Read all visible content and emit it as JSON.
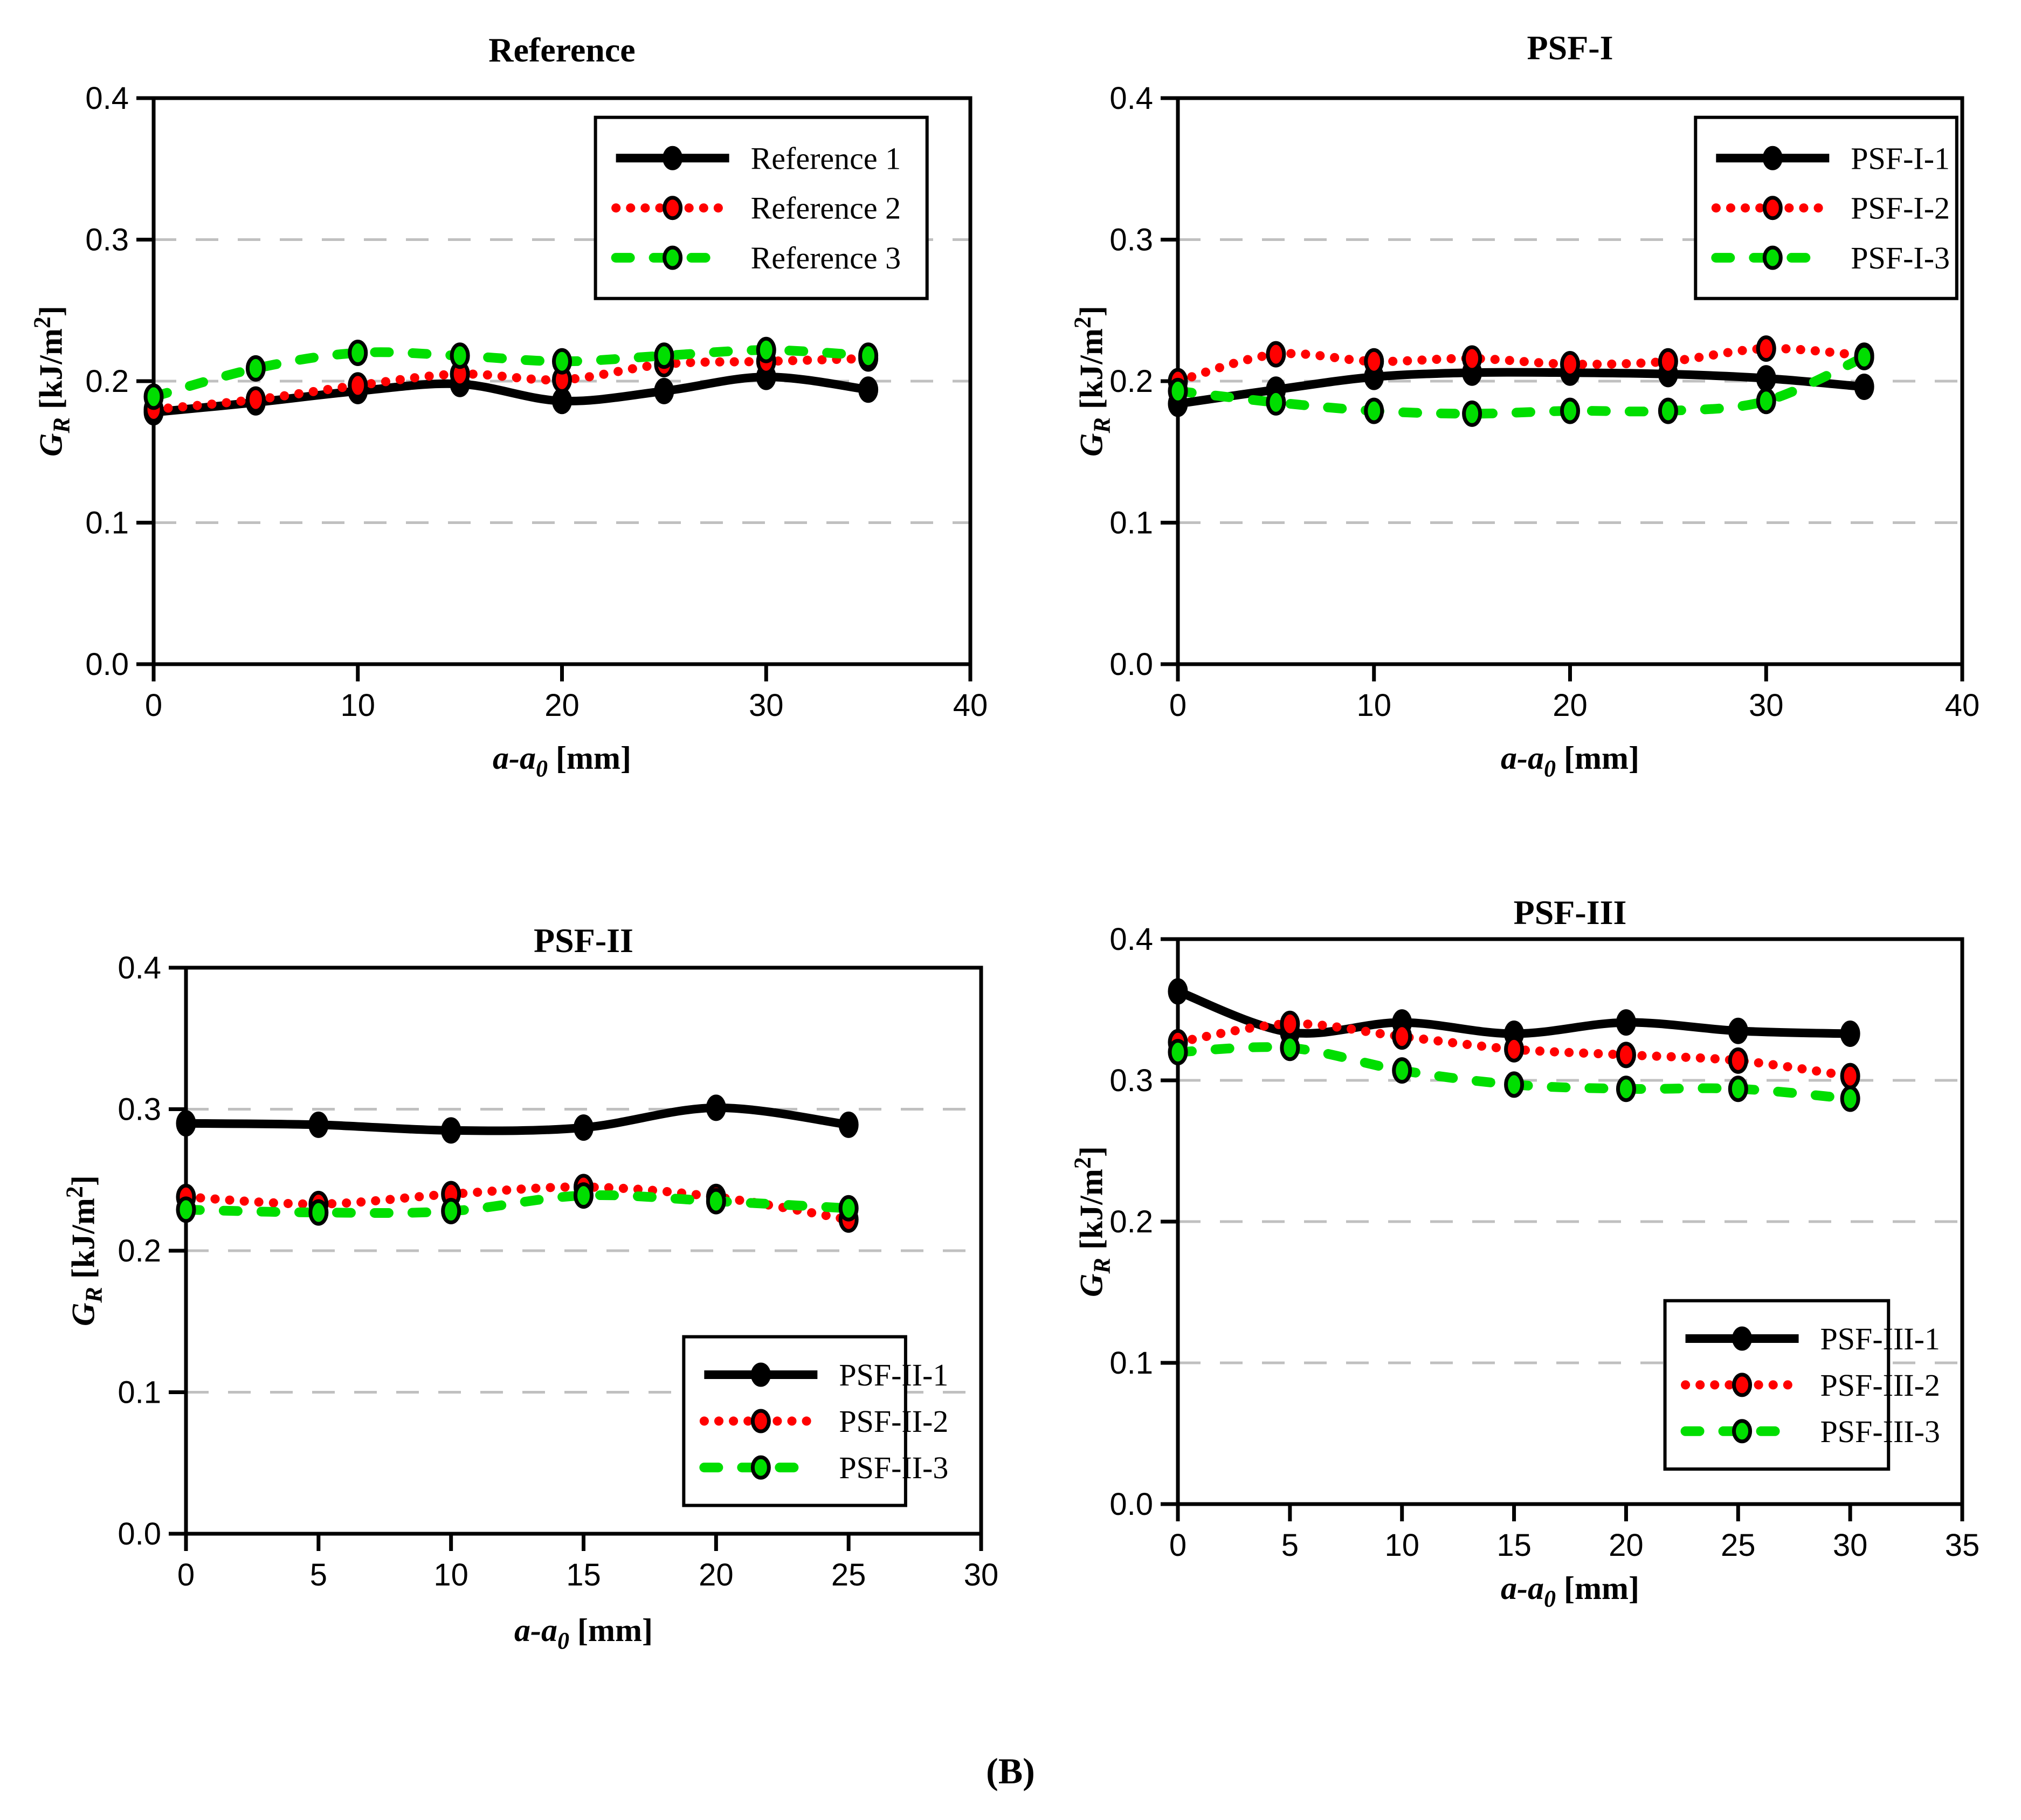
{
  "caption": "(B)",
  "colors": {
    "black_series": "#000000",
    "red_series": "#ff0000",
    "green_series": "#00de00",
    "grid": "#c0c0c0",
    "frame": "#000000"
  },
  "axis": {
    "xlabel_main": "a-a",
    "xlabel_sub": "0",
    "xlabel_unit": " [mm]",
    "ylabel_main": "G",
    "ylabel_sub": "R",
    "ylabel_unit": " [kJ/m",
    "ylabel_sup": "2",
    "ylabel_close": "]"
  },
  "chart_data": [
    {
      "type": "line",
      "title": "Reference",
      "xlabel": "a-a0 [mm]",
      "ylabel": "GR [kJ/m2]",
      "x": [
        0,
        5,
        10,
        15,
        20,
        25,
        30,
        35
      ],
      "xlim": [
        0,
        40
      ],
      "ylim": [
        0,
        0.4
      ],
      "xticks": [
        0,
        10,
        20,
        30,
        40
      ],
      "ytick_labels": [
        "0.0",
        "0.1",
        "0.2",
        "0.3",
        "0.4"
      ],
      "ytick_values": [
        0,
        0.1,
        0.2,
        0.3,
        0.4
      ],
      "grid": "horizontal-dashed",
      "legend_position": "top-right",
      "series": [
        {
          "name": "Reference 1",
          "color": "black_series",
          "style": "solid",
          "values": [
            0.178,
            0.185,
            0.193,
            0.198,
            0.186,
            0.193,
            0.203,
            0.194
          ]
        },
        {
          "name": "Reference 2",
          "color": "red_series",
          "style": "dotted",
          "values": [
            0.18,
            0.187,
            0.197,
            0.205,
            0.201,
            0.212,
            0.214,
            0.216
          ]
        },
        {
          "name": "Reference 3",
          "color": "green_series",
          "style": "dashed",
          "values": [
            0.189,
            0.209,
            0.22,
            0.218,
            0.214,
            0.218,
            0.222,
            0.218
          ]
        }
      ]
    },
    {
      "type": "line",
      "title": "PSF-I",
      "xlabel": "a-a0 [mm]",
      "ylabel": "GR [kJ/m2]",
      "x": [
        0,
        5,
        10,
        15,
        20,
        25,
        30,
        35
      ],
      "xlim": [
        0,
        40
      ],
      "ylim": [
        0,
        0.4
      ],
      "xticks": [
        0,
        10,
        20,
        30,
        40
      ],
      "ytick_labels": [
        "0.0",
        "0.1",
        "0.2",
        "0.3",
        "0.4"
      ],
      "ytick_values": [
        0,
        0.1,
        0.2,
        0.3,
        0.4
      ],
      "grid": "horizontal-dashed",
      "legend_position": "top-right",
      "series": [
        {
          "name": "PSF-I-1",
          "color": "black_series",
          "style": "solid",
          "values": [
            0.184,
            0.194,
            0.203,
            0.206,
            0.206,
            0.205,
            0.202,
            0.196
          ]
        },
        {
          "name": "PSF-I-2",
          "color": "red_series",
          "style": "dotted",
          "values": [
            0.2,
            0.219,
            0.214,
            0.216,
            0.212,
            0.214,
            0.223,
            0.218
          ]
        },
        {
          "name": "PSF-I-3",
          "color": "green_series",
          "style": "dashed",
          "values": [
            0.193,
            0.185,
            0.179,
            0.177,
            0.179,
            0.179,
            0.186,
            0.217
          ]
        }
      ]
    },
    {
      "type": "line",
      "title": "PSF-II",
      "xlabel": "a-a0 [mm]",
      "ylabel": "GR [kJ/m2]",
      "x": [
        0,
        5,
        10,
        15,
        20,
        25
      ],
      "xlim": [
        0,
        30
      ],
      "ylim": [
        0,
        0.4
      ],
      "xticks": [
        0,
        5,
        10,
        15,
        20,
        25,
        30
      ],
      "ytick_labels": [
        "0.0",
        "0.1",
        "0.2",
        "0.3",
        "0.4"
      ],
      "ytick_values": [
        0,
        0.1,
        0.2,
        0.3,
        0.4
      ],
      "grid": "horizontal-dashed",
      "legend_position": "bottom-right",
      "series": [
        {
          "name": "PSF-II-1",
          "color": "black_series",
          "style": "solid",
          "values": [
            0.29,
            0.289,
            0.285,
            0.287,
            0.301,
            0.289
          ]
        },
        {
          "name": "PSF-II-2",
          "color": "red_series",
          "style": "dotted",
          "values": [
            0.238,
            0.233,
            0.24,
            0.245,
            0.238,
            0.222
          ]
        },
        {
          "name": "PSF-II-3",
          "color": "green_series",
          "style": "dashed",
          "values": [
            0.229,
            0.227,
            0.228,
            0.239,
            0.235,
            0.23
          ]
        }
      ]
    },
    {
      "type": "line",
      "title": "PSF-III",
      "xlabel": "a-a0 [mm]",
      "ylabel": "GR [kJ/m2]",
      "x": [
        0,
        5,
        10,
        15,
        20,
        25,
        30
      ],
      "xlim": [
        0,
        35
      ],
      "ylim": [
        0,
        0.4
      ],
      "xticks": [
        0,
        5,
        10,
        15,
        20,
        25,
        30,
        35
      ],
      "ytick_labels": [
        "0.0",
        "0.1",
        "0.2",
        "0.3",
        "0.4"
      ],
      "ytick_values": [
        0,
        0.1,
        0.2,
        0.3,
        0.4
      ],
      "grid": "horizontal-dashed",
      "legend_position": "bottom-right",
      "series": [
        {
          "name": "PSF-III-1",
          "color": "black_series",
          "style": "solid",
          "values": [
            0.363,
            0.334,
            0.341,
            0.333,
            0.341,
            0.335,
            0.333
          ]
        },
        {
          "name": "PSF-III-2",
          "color": "red_series",
          "style": "dotted",
          "values": [
            0.327,
            0.34,
            0.331,
            0.322,
            0.318,
            0.314,
            0.303
          ]
        },
        {
          "name": "PSF-III-3",
          "color": "green_series",
          "style": "dashed",
          "values": [
            0.32,
            0.323,
            0.307,
            0.297,
            0.294,
            0.294,
            0.287
          ]
        }
      ]
    }
  ]
}
